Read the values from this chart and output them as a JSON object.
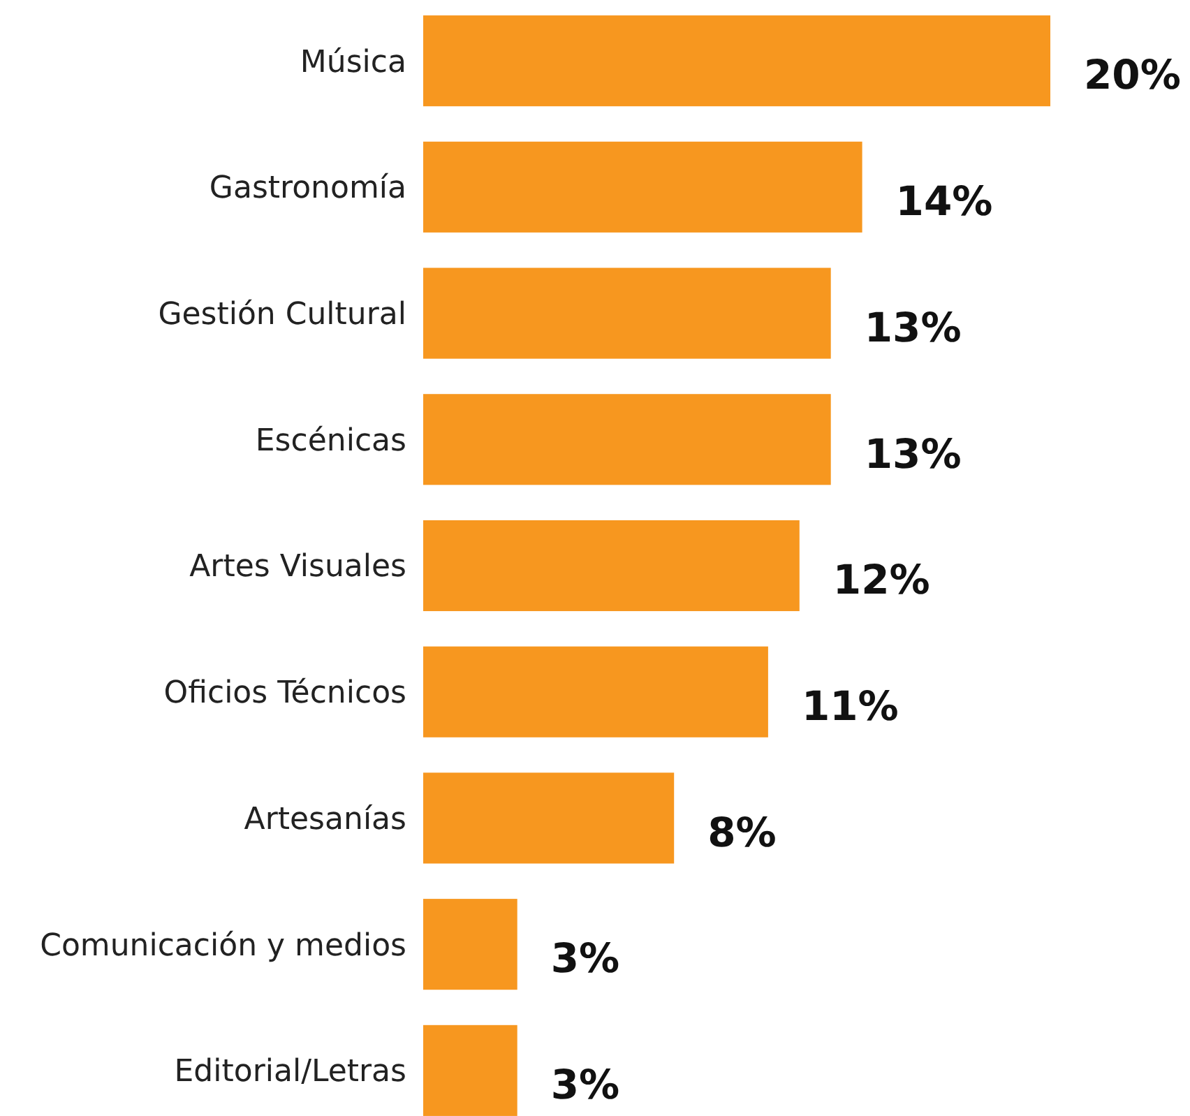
{
  "chart_data": {
    "type": "bar",
    "orientation": "horizontal",
    "categories": [
      "Música",
      "Gastronomía",
      "Gestión Cultural",
      "Escénicas",
      "Artes Visuales",
      "Oficios Técnicos",
      "Artesanías",
      "Comunicación y medios",
      "Editorial/Letras"
    ],
    "values": [
      20,
      14,
      13,
      13,
      12,
      11,
      8,
      3,
      3
    ],
    "value_labels": [
      "20%",
      "14%",
      "13%",
      "13%",
      "12%",
      "11%",
      "8%",
      "3%",
      "3%"
    ],
    "color": "#f7971f",
    "grid": false
  }
}
